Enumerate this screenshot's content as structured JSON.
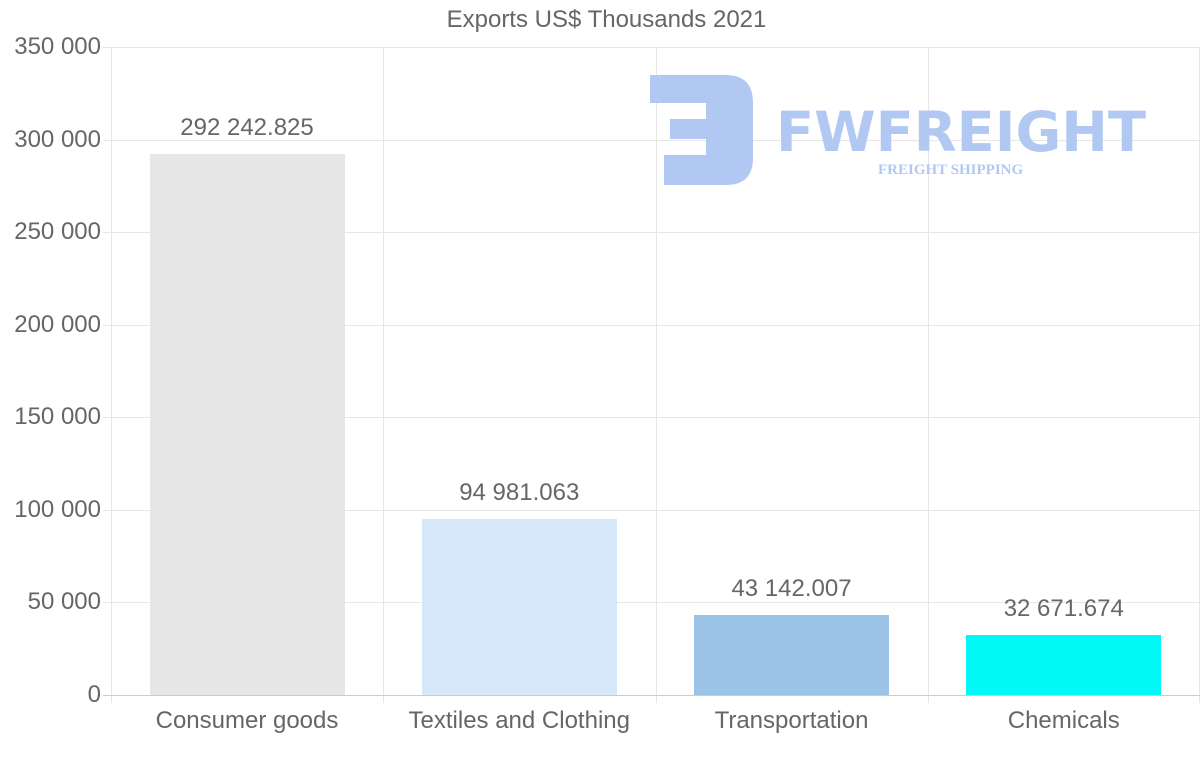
{
  "chart_data": {
    "type": "bar",
    "title": "Exports US$ Thousands 2021",
    "categories": [
      "Consumer goods",
      "Textiles and Clothing",
      "Transportation",
      "Chemicals"
    ],
    "values": [
      292242.825,
      94981.063,
      43142.007,
      32671.674
    ],
    "value_labels": [
      "292 242.825",
      "94 981.063",
      "43 142.007",
      "32 671.674"
    ],
    "colors": [
      "#e6e6e6",
      "#d6e7f9",
      "#9ac3e6",
      "#00f8f7"
    ],
    "xlabel": "",
    "ylabel": "",
    "ylim": [
      0,
      350000
    ],
    "yticks": [
      0,
      50000,
      100000,
      150000,
      200000,
      250000,
      300000,
      350000
    ],
    "ytick_labels": [
      "0",
      "50 000",
      "100 000",
      "150 000",
      "200 000",
      "250 000",
      "300 000",
      "350 000"
    ],
    "grid": true,
    "legend": "none"
  },
  "watermark": {
    "brand": "FWFREIGHT",
    "tagline": "FREIGHT SHIPPING",
    "color": "#b1c9f2"
  }
}
